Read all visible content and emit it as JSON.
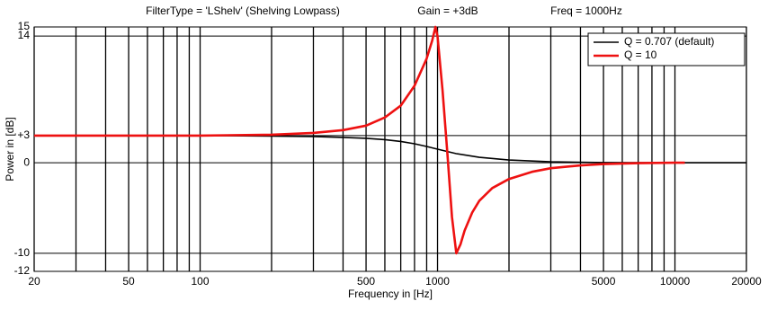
{
  "chart_data": {
    "type": "line",
    "title": [
      "FilterType = 'LShelv' (Shelving Lowpass)",
      "Gain = +3dB",
      "Freq = 1000Hz"
    ],
    "x_label": "Frequency in [Hz]",
    "y_label": "Power in [dB]",
    "xscale": "log",
    "xlim": [
      20,
      20000
    ],
    "xticks": [
      20,
      50,
      100,
      500,
      1000,
      5000,
      10000,
      20000
    ],
    "xminor": [
      30,
      40,
      60,
      70,
      80,
      90,
      200,
      300,
      400,
      600,
      700,
      800,
      900,
      2000,
      3000,
      4000,
      6000,
      7000,
      8000,
      9000
    ],
    "ylim": [
      -12,
      15
    ],
    "yticks": [
      -12,
      -10,
      0,
      {
        "value": 3,
        "label": "+3"
      },
      14,
      15
    ],
    "grid": true,
    "legend": "upper right",
    "series": [
      {
        "name": "Q = 0.707  (default)",
        "color": "#000000",
        "x": [
          20,
          50,
          100,
          200,
          300,
          400,
          500,
          600,
          700,
          800,
          900,
          1000,
          1200,
          1500,
          2000,
          3000,
          5000,
          10000,
          20000
        ],
        "values": [
          3,
          3,
          3,
          2.95,
          2.9,
          2.8,
          2.7,
          2.55,
          2.35,
          2.1,
          1.8,
          1.5,
          1.0,
          0.6,
          0.3,
          0.1,
          0.02,
          0,
          0
        ]
      },
      {
        "name": "Q = 10",
        "color": "#ee1111",
        "x": [
          20,
          100,
          200,
          300,
          400,
          500,
          600,
          700,
          800,
          900,
          950,
          980,
          1000,
          1050,
          1100,
          1150,
          1200,
          1250,
          1300,
          1400,
          1500,
          1700,
          2000,
          2500,
          3000,
          4000,
          5000,
          7000,
          10000,
          11000
        ],
        "values": [
          3,
          3,
          3.1,
          3.3,
          3.6,
          4.1,
          5,
          6.3,
          8.5,
          11.5,
          13.5,
          15,
          14,
          8,
          1,
          -6,
          -10,
          -9,
          -7.5,
          -5.5,
          -4.2,
          -2.8,
          -1.8,
          -1,
          -0.6,
          -0.3,
          -0.15,
          -0.05,
          0,
          0
        ]
      }
    ]
  }
}
